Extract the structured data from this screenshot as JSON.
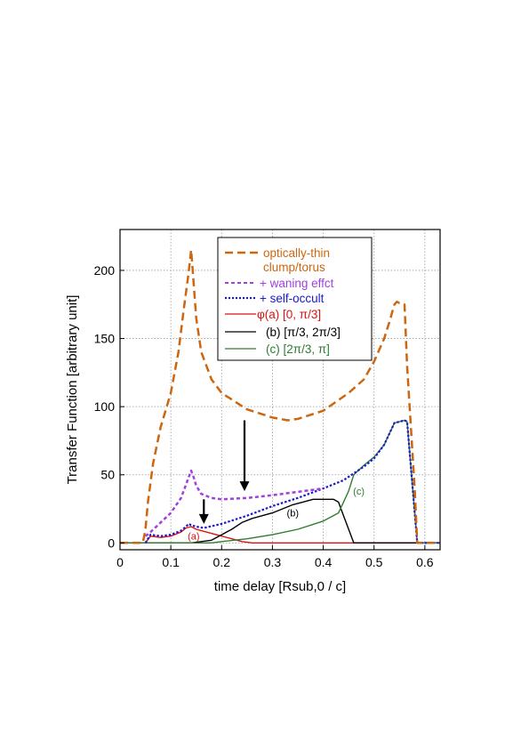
{
  "chart_data": {
    "type": "line",
    "xlabel": "time delay [Rsub,0 / c]",
    "ylabel": "Transfer Function [arbitrary unit]",
    "xlim": [
      0,
      0.63
    ],
    "ylim": [
      -5,
      230
    ],
    "xticks": [
      0,
      0.1,
      0.2,
      0.3,
      0.4,
      0.5,
      0.6
    ],
    "xtick_labels": [
      "0",
      "0.1",
      "0.2",
      "0.3",
      "0.4",
      "0.5",
      "0.6"
    ],
    "yticks": [
      0,
      50,
      100,
      150,
      200
    ],
    "ytick_labels": [
      "0",
      "50",
      "100",
      "150",
      "200"
    ],
    "grid": true,
    "legend_position": "top-center",
    "series": [
      {
        "name": "optically-thin clump/torus",
        "color": "#cc6611",
        "style": "dashed",
        "x": [
          0,
          0.045,
          0.05,
          0.055,
          0.065,
          0.08,
          0.1,
          0.115,
          0.125,
          0.135,
          0.14,
          0.145,
          0.15,
          0.16,
          0.18,
          0.2,
          0.25,
          0.3,
          0.33,
          0.35,
          0.4,
          0.45,
          0.48,
          0.5,
          0.52,
          0.53,
          0.54,
          0.545,
          0.55,
          0.555,
          0.56,
          0.565,
          0.58,
          0.585,
          0.63
        ],
        "y": [
          0,
          0,
          10,
          30,
          58,
          85,
          110,
          140,
          170,
          198,
          215,
          190,
          165,
          140,
          120,
          110,
          98,
          92,
          90,
          91,
          97,
          110,
          120,
          133,
          150,
          162,
          175,
          177,
          176,
          176,
          175,
          130,
          40,
          0,
          0
        ]
      },
      {
        "name": "+ waning effct",
        "color": "#a040dd",
        "style": "dashed",
        "x": [
          0.05,
          0.06,
          0.08,
          0.1,
          0.12,
          0.13,
          0.14,
          0.145,
          0.15,
          0.16,
          0.18,
          0.2,
          0.25,
          0.3,
          0.35,
          0.4
        ],
        "y": [
          5,
          8,
          15,
          22,
          33,
          43,
          53,
          48,
          42,
          36,
          33,
          32,
          33,
          35,
          37.5,
          40
        ]
      },
      {
        "name": "+ self-occult",
        "color": "#1a1acc",
        "style": "dotted",
        "x": [
          0.05,
          0.06,
          0.08,
          0.1,
          0.12,
          0.13,
          0.135,
          0.14,
          0.15,
          0.165,
          0.2,
          0.25,
          0.3,
          0.35,
          0.4,
          0.44,
          0.46,
          0.48,
          0.5,
          0.52,
          0.54,
          0.55,
          0.56,
          0.565,
          0.585,
          0.63
        ],
        "y": [
          0,
          6,
          5,
          6,
          9,
          12,
          14,
          13,
          12,
          11,
          14,
          20,
          27,
          33,
          40,
          46,
          51,
          56,
          62,
          72,
          88,
          89,
          90,
          89,
          0,
          0
        ]
      },
      {
        "name": "φ(a) [0, π/3]",
        "color": "#dd1111",
        "style": "solid",
        "x": [
          0,
          0.05,
          0.06,
          0.08,
          0.1,
          0.12,
          0.13,
          0.14,
          0.15,
          0.17,
          0.2,
          0.22,
          0.24,
          0.26,
          0.63
        ],
        "y": [
          0,
          0,
          5,
          4,
          5,
          8,
          11,
          12,
          10,
          8,
          5,
          3,
          1,
          0,
          0
        ]
      },
      {
        "name": "(b) [π/3, 2π/3]",
        "color": "#000000",
        "style": "solid",
        "x": [
          0,
          0.14,
          0.16,
          0.18,
          0.2,
          0.22,
          0.24,
          0.26,
          0.28,
          0.3,
          0.32,
          0.34,
          0.36,
          0.38,
          0.4,
          0.42,
          0.43,
          0.44,
          0.46,
          0.63
        ],
        "y": [
          0,
          0,
          1,
          2,
          6,
          10,
          15,
          18,
          20,
          22,
          25,
          28,
          30,
          32,
          32,
          32,
          30,
          20,
          0,
          0
        ]
      },
      {
        "name": "(c) [2π/3, π]",
        "color": "#2e7d32",
        "style": "solid",
        "x": [
          0,
          0.18,
          0.2,
          0.25,
          0.3,
          0.35,
          0.4,
          0.43,
          0.44,
          0.45,
          0.46,
          0.48,
          0.5,
          0.52,
          0.54,
          0.55,
          0.56,
          0.565,
          0.585,
          0.63
        ],
        "y": [
          0,
          0,
          1,
          3,
          6,
          10,
          16,
          22,
          30,
          38,
          50,
          57,
          63,
          72,
          88,
          89,
          90,
          89,
          0,
          0
        ]
      }
    ],
    "annotations": [
      {
        "text": "(a)",
        "x": 0.145,
        "y": 5,
        "color": "#dd1111"
      },
      {
        "text": "(b)",
        "x": 0.34,
        "y": 22,
        "color": "#000000"
      },
      {
        "text": "(c)",
        "x": 0.47,
        "y": 38,
        "color": "#2e7d32"
      }
    ],
    "arrows": [
      {
        "x": 0.165,
        "y_from": 32,
        "y_to": 14
      },
      {
        "x": 0.245,
        "y_from": 90,
        "y_to": 38
      }
    ]
  },
  "legend": {
    "line1": "optically-thin",
    "line2": "clump/torus",
    "waning": "+ waning effct",
    "occult": "+ self-occult",
    "a": "φ(a) [0, π/3]",
    "b": "(b) [π/3, 2π/3]",
    "c": "(c) [2π/3, π]"
  }
}
